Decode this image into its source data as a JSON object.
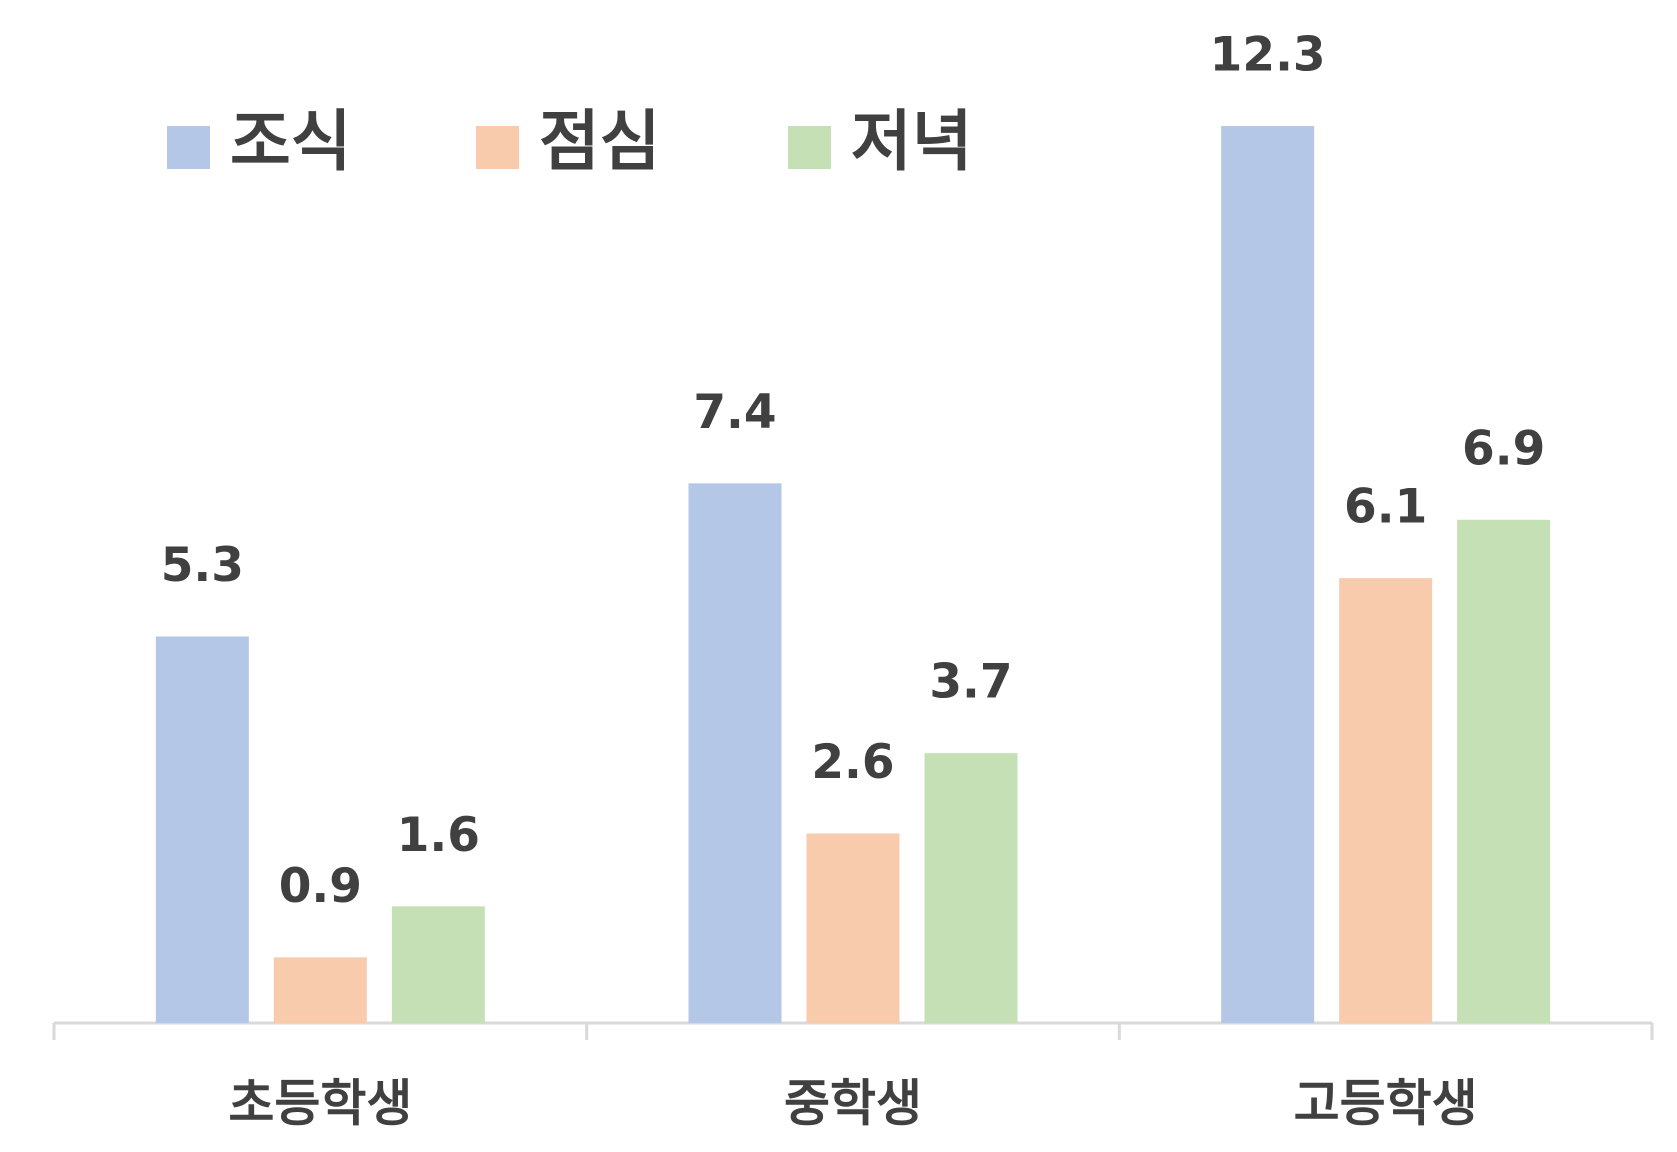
{
  "chart_data": {
    "type": "bar",
    "categories": [
      "초등학생",
      "중학생",
      "고등학생"
    ],
    "series": [
      {
        "name": "조식",
        "color": "#b4c7e7",
        "values": [
          5.3,
          7.4,
          12.3
        ]
      },
      {
        "name": "점심",
        "color": "#f8cbad",
        "values": [
          0.9,
          2.6,
          6.1
        ]
      },
      {
        "name": "저녁",
        "color": "#c5e0b4",
        "values": [
          1.6,
          3.7,
          6.9
        ]
      }
    ],
    "legend": "top-left"
  }
}
